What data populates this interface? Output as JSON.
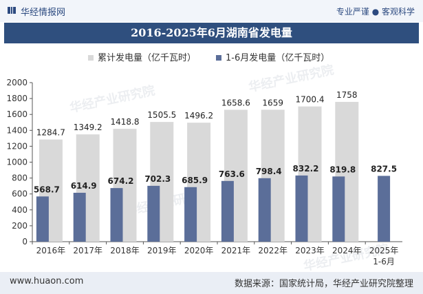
{
  "header": {
    "site_name": "华经情报网",
    "tagline": "专业严谨 ● 客观科学",
    "logo_icon": "huajing-logo-icon"
  },
  "title": "2016-2025年6月湖南省发电量",
  "footer": {
    "website": "www.huaon.com",
    "source": "数据来源：国家统计局，华经产业研究院整理"
  },
  "watermark": "华经产业研究院",
  "colors": {
    "series_cumulative": "#d9d9d9",
    "series_half": "#5b6e99",
    "title_bg": "#2f4f7e"
  },
  "chart_data": {
    "type": "bar",
    "title": "2016-2025年6月湖南省发电量",
    "categories": [
      "2016年",
      "2017年",
      "2018年",
      "2019年",
      "2020年",
      "2021年",
      "2022年",
      "2023年",
      "2024年",
      "2025年1-6月"
    ],
    "category_lines": [
      [
        "2016年"
      ],
      [
        "2017年"
      ],
      [
        "2018年"
      ],
      [
        "2019年"
      ],
      [
        "2020年"
      ],
      [
        "2021年"
      ],
      [
        "2022年"
      ],
      [
        "2023年"
      ],
      [
        "2024年"
      ],
      [
        "2025年",
        "1-6月"
      ]
    ],
    "series": [
      {
        "name": "累计发电量（亿千瓦时）",
        "values": [
          1284.7,
          1349.2,
          1418.8,
          1505.5,
          1496.2,
          1658.6,
          1659,
          1700.4,
          1758,
          null
        ]
      },
      {
        "name": "1-6月发电量（亿千瓦时）",
        "values": [
          568.7,
          614.9,
          674.2,
          702.3,
          685.9,
          763.6,
          798.4,
          832.2,
          819.8,
          827.5
        ]
      }
    ],
    "y_ticks": [
      0,
      200,
      400,
      600,
      800,
      1000,
      1200,
      1400,
      1600,
      1800,
      2000
    ],
    "ylim": [
      0,
      2000
    ],
    "legend_position": "top-center",
    "grid": false
  }
}
